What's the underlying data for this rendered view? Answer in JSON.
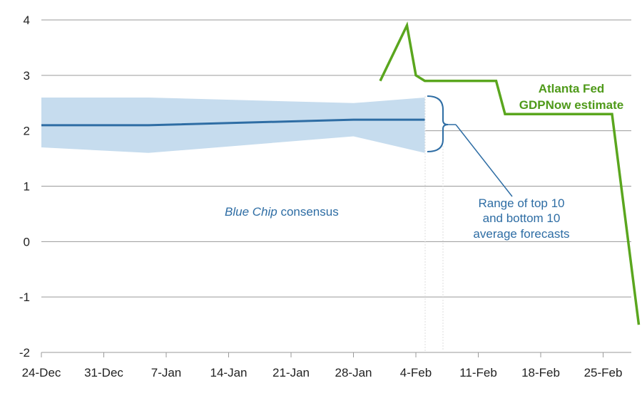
{
  "chart_data": {
    "type": "line",
    "title": "",
    "xlabel": "",
    "ylabel": "",
    "ylim": [
      -2,
      4
    ],
    "yticks": [
      "4",
      "3",
      "2",
      "1",
      "0",
      "-1",
      "-2"
    ],
    "ytick_values": [
      4,
      3,
      2,
      1,
      0,
      -1,
      -2
    ],
    "xticks": [
      "24-Dec",
      "31-Dec",
      "7-Jan",
      "14-Jan",
      "21-Jan",
      "28-Jan",
      "4-Feb",
      "11-Feb",
      "18-Feb",
      "25-Feb"
    ],
    "x_unit": "days since 24-Dec",
    "xlim": [
      0,
      67
    ],
    "grid": true,
    "series": [
      {
        "name": "Blue Chip consensus",
        "color": "#2e6da4",
        "x": [
          0,
          12,
          35,
          43
        ],
        "y": [
          2.1,
          2.1,
          2.2,
          2.2
        ]
      },
      {
        "name": "Atlanta Fed GDPNow estimate",
        "color": "#5aa61e",
        "x": [
          38,
          41,
          42,
          43,
          51,
          52,
          60,
          64,
          67
        ],
        "y": [
          2.9,
          3.9,
          3.0,
          2.9,
          2.9,
          2.3,
          2.3,
          2.3,
          -1.5
        ]
      }
    ],
    "band": {
      "name": "Range of top 10 and bottom 10 average forecasts",
      "color": "#c6dcee",
      "x": [
        0,
        12,
        35,
        43
      ],
      "upper": [
        2.6,
        2.6,
        2.5,
        2.6
      ],
      "lower": [
        1.7,
        1.6,
        1.9,
        1.6
      ]
    },
    "annotations": {
      "blue_chip_italic": "Blue Chip",
      "blue_chip_rest": " consensus",
      "range_lines": [
        "Range of top 10",
        "and bottom 10",
        "average forecasts"
      ],
      "gdpnow_lines": [
        "Atlanta Fed",
        "GDPNow estimate"
      ]
    }
  }
}
